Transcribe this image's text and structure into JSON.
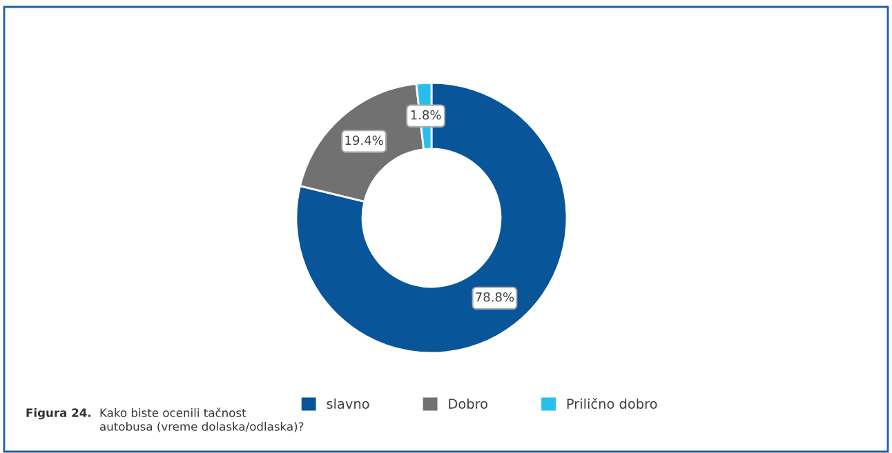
{
  "chart_data": {
    "type": "donut",
    "categories": [
      "slavno",
      "Dobro",
      "Prilično dobro"
    ],
    "values": [
      78.8,
      19.4,
      1.8
    ],
    "colors": [
      "#08559a",
      "#717171",
      "#29bfed"
    ],
    "value_labels": [
      "78.8%",
      "19.4%",
      "1.8%"
    ],
    "legend": "bottom",
    "annotations": [
      "Figura 24.",
      "Kako biste ocenili tačnost\nautobusa (vreme dolaska/odlaska)?"
    ]
  }
}
